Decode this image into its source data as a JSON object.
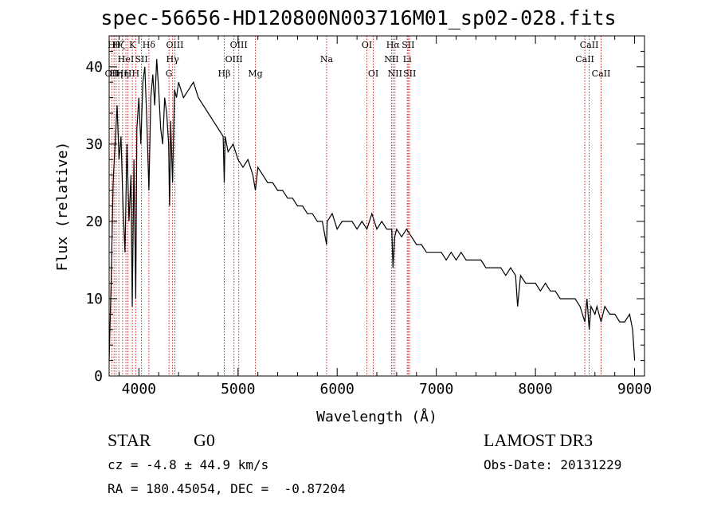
{
  "title": "spec-56656-HD120800N003716M01_sp02-028.fits",
  "info": {
    "class_label": "STAR",
    "subclass": "G0",
    "survey": "LAMOST DR3",
    "cz": "cz = -4.8 ± 44.9 km/s",
    "obs_date": "Obs-Date: 20131229",
    "coords": "RA = 180.45054, DEC =  -0.87204"
  },
  "colors": {
    "line_marker": "#cc2222",
    "spectrum": "#000000"
  },
  "chart_data": {
    "type": "line",
    "title": "spec-56656-HD120800N003716M01_sp02-028.fits",
    "xlabel": "Wavelength (Å)",
    "ylabel": "Flux (relative)",
    "xlim": [
      3700,
      9100
    ],
    "ylim": [
      0,
      44
    ],
    "xticks": [
      4000,
      5000,
      6000,
      7000,
      8000,
      9000
    ],
    "yticks": [
      0,
      10,
      20,
      30,
      40
    ],
    "series": [
      {
        "name": "flux",
        "x": [
          3700,
          3720,
          3740,
          3760,
          3780,
          3800,
          3820,
          3840,
          3860,
          3880,
          3900,
          3920,
          3933,
          3950,
          3968,
          3980,
          4000,
          4020,
          4040,
          4060,
          4080,
          4101,
          4120,
          4140,
          4160,
          4180,
          4200,
          4220,
          4240,
          4260,
          4280,
          4300,
          4310,
          4320,
          4340,
          4360,
          4380,
          4400,
          4450,
          4500,
          4550,
          4600,
          4650,
          4700,
          4750,
          4800,
          4850,
          4861,
          4870,
          4900,
          4950,
          5000,
          5050,
          5100,
          5150,
          5175,
          5200,
          5250,
          5300,
          5350,
          5400,
          5450,
          5500,
          5550,
          5600,
          5650,
          5700,
          5750,
          5800,
          5850,
          5893,
          5900,
          5950,
          6000,
          6050,
          6100,
          6150,
          6200,
          6250,
          6300,
          6350,
          6400,
          6450,
          6500,
          6550,
          6563,
          6580,
          6600,
          6650,
          6700,
          6750,
          6800,
          6850,
          6900,
          6950,
          7000,
          7050,
          7100,
          7150,
          7200,
          7250,
          7300,
          7350,
          7400,
          7450,
          7500,
          7550,
          7600,
          7650,
          7700,
          7750,
          7800,
          7820,
          7850,
          7900,
          7950,
          8000,
          8050,
          8100,
          8150,
          8200,
          8250,
          8300,
          8350,
          8400,
          8450,
          8498,
          8520,
          8542,
          8560,
          8600,
          8620,
          8662,
          8700,
          8750,
          8800,
          8850,
          8900,
          8950,
          8980,
          9000
        ],
        "y": [
          2,
          12,
          25,
          30,
          35,
          28,
          31,
          22,
          16,
          30,
          20,
          26,
          9,
          28,
          10,
          32,
          36,
          30,
          38,
          40,
          33,
          24,
          36,
          39,
          35,
          41,
          37,
          32,
          30,
          36,
          34,
          30,
          22,
          33,
          25,
          37,
          36,
          38,
          36,
          37,
          38,
          36,
          35,
          34,
          33,
          32,
          31,
          25,
          31,
          29,
          30,
          28,
          27,
          28,
          26,
          24,
          27,
          26,
          25,
          25,
          24,
          24,
          23,
          23,
          22,
          22,
          21,
          21,
          20,
          20,
          17,
          20,
          21,
          19,
          20,
          20,
          20,
          19,
          20,
          19,
          21,
          19,
          20,
          19,
          19,
          14,
          18,
          19,
          18,
          19,
          18,
          17,
          17,
          16,
          16,
          16,
          16,
          15,
          16,
          15,
          16,
          15,
          15,
          15,
          15,
          14,
          14,
          14,
          14,
          13,
          14,
          13,
          9,
          13,
          12,
          12,
          12,
          11,
          12,
          11,
          11,
          10,
          10,
          10,
          10,
          9,
          7,
          10,
          6,
          9,
          8,
          9,
          7,
          9,
          8,
          8,
          7,
          7,
          8,
          6,
          2
        ]
      }
    ],
    "lines": [
      {
        "wave": 3727,
        "label": "OII",
        "row": 2
      },
      {
        "wave": 3750,
        "label": "Hθ",
        "row": 0
      },
      {
        "wave": 3771,
        "label": "Hη",
        "row": 2
      },
      {
        "wave": 3798,
        "label": "Hζ",
        "row": 0
      },
      {
        "wave": 3835,
        "label": "Hη",
        "row": 2
      },
      {
        "wave": 3869,
        "label": "HeI",
        "row": 1
      },
      {
        "wave": 3889,
        "label": "H",
        "row": 2
      },
      {
        "wave": 3934,
        "label": "K",
        "row": 0
      },
      {
        "wave": 3968,
        "label": "H",
        "row": 2
      },
      {
        "wave": 4026,
        "label": "SII",
        "row": 1
      },
      {
        "wave": 4101,
        "label": "Hδ",
        "row": 0
      },
      {
        "wave": 4304,
        "label": "G",
        "row": 2
      },
      {
        "wave": 4340,
        "label": "Hγ",
        "row": 1
      },
      {
        "wave": 4363,
        "label": "OIII",
        "row": 0
      },
      {
        "wave": 4861,
        "label": "Hβ",
        "row": 2
      },
      {
        "wave": 4959,
        "label": "OIII",
        "row": 1
      },
      {
        "wave": 5007,
        "label": "OIII",
        "row": 0
      },
      {
        "wave": 5175,
        "label": "Mg",
        "row": 2
      },
      {
        "wave": 5893,
        "label": "Na",
        "row": 1
      },
      {
        "wave": 6300,
        "label": "OI",
        "row": 0
      },
      {
        "wave": 6364,
        "label": "OI",
        "row": 2
      },
      {
        "wave": 6548,
        "label": "NII",
        "row": 1
      },
      {
        "wave": 6563,
        "label": "Hα",
        "row": 0
      },
      {
        "wave": 6583,
        "label": "NII",
        "row": 2
      },
      {
        "wave": 6707,
        "label": "Li",
        "row": 1
      },
      {
        "wave": 6716,
        "label": "SII",
        "row": 0
      },
      {
        "wave": 6731,
        "label": "SII",
        "row": 2
      },
      {
        "wave": 8498,
        "label": "CaII",
        "row": 1
      },
      {
        "wave": 8542,
        "label": "CaII",
        "row": 0
      },
      {
        "wave": 8662,
        "label": "CaII",
        "row": 2
      }
    ]
  }
}
